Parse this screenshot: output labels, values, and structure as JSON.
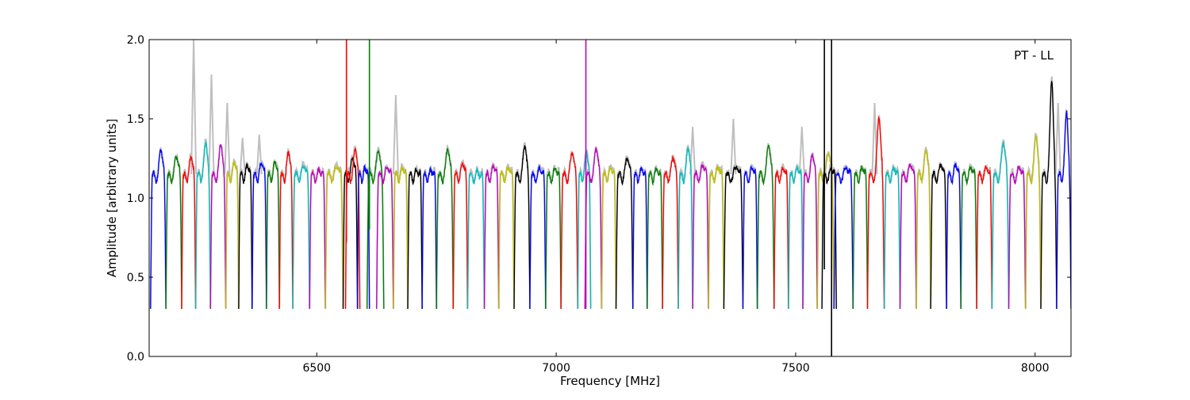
{
  "chart_data": {
    "type": "line",
    "xlabel": "Frequency [MHz]",
    "ylabel": "Amplitude [arbitrary units]",
    "annotation": "PT - LL",
    "xlim": [
      6150,
      8075
    ],
    "ylim": [
      0.0,
      2.0
    ],
    "x_ticks": [
      6500,
      7000,
      7500,
      8000
    ],
    "x_tick_labels": [
      "6500",
      "7000",
      "7500",
      "8000"
    ],
    "y_ticks": [
      0.0,
      0.5,
      1.0,
      1.5,
      2.0
    ],
    "y_tick_labels": [
      "0.0",
      "0.5",
      "1.0",
      "1.5",
      "2.0"
    ],
    "grid": false,
    "color_cycle": [
      "#0000ff",
      "#008000",
      "#ff0000",
      "#00bfbf",
      "#bf00bf",
      "#bfbf00",
      "#000000"
    ],
    "background_trace_color": "#bfbfbf",
    "series": [
      {
        "x_start": 6153,
        "x_end": 6185,
        "peak": 1.32,
        "color": "#0000ff"
      },
      {
        "x_start": 6185,
        "x_end": 6218,
        "peak": 1.28,
        "color": "#008000"
      },
      {
        "x_start": 6218,
        "x_end": 6247,
        "peak": 1.28,
        "color": "#ff0000"
      },
      {
        "x_start": 6247,
        "x_end": 6278,
        "peak": 1.37,
        "color": "#00bfbf"
      },
      {
        "x_start": 6278,
        "x_end": 6310,
        "peak": 1.36,
        "color": "#bf00bf"
      },
      {
        "x_start": 6310,
        "x_end": 6337,
        "peak": 1.24,
        "color": "#bfbf00"
      },
      {
        "x_start": 6337,
        "x_end": 6365,
        "peak": 1.22,
        "color": "#000000"
      },
      {
        "x_start": 6365,
        "x_end": 6395,
        "peak": 1.24,
        "color": "#0000ff"
      },
      {
        "x_start": 6395,
        "x_end": 6422,
        "peak": 1.25,
        "color": "#008000"
      },
      {
        "x_start": 6422,
        "x_end": 6450,
        "peak": 1.31,
        "color": "#ff0000"
      },
      {
        "x_start": 6450,
        "x_end": 6485,
        "peak": 1.22,
        "color": "#00bfbf"
      },
      {
        "x_start": 6485,
        "x_end": 6518,
        "peak": 1.18,
        "color": "#bf00bf"
      },
      {
        "x_start": 6518,
        "x_end": 6555,
        "peak": 1.21,
        "color": "#bfbf00"
      },
      {
        "x_start": 6555,
        "x_end": 6585,
        "peak": 1.27,
        "color": "#000000"
      },
      {
        "x_start": 6560,
        "x_end": 6590,
        "peak": 1.33,
        "color": "#ff0000"
      },
      {
        "x_start": 6585,
        "x_end": 6610,
        "peak": 1.2,
        "color": "#0000ff"
      },
      {
        "x_start": 6605,
        "x_end": 6640,
        "peak": 1.32,
        "color": "#008000"
      },
      {
        "x_start": 6625,
        "x_end": 6660,
        "peak": 1.2,
        "color": "#bf00bf"
      },
      {
        "x_start": 6660,
        "x_end": 6690,
        "peak": 1.2,
        "color": "#bfbf00"
      },
      {
        "x_start": 6690,
        "x_end": 6720,
        "peak": 1.18,
        "color": "#000000"
      },
      {
        "x_start": 6720,
        "x_end": 6750,
        "peak": 1.18,
        "color": "#0000ff"
      },
      {
        "x_start": 6750,
        "x_end": 6785,
        "peak": 1.33,
        "color": "#008000"
      },
      {
        "x_start": 6785,
        "x_end": 6815,
        "peak": 1.24,
        "color": "#ff0000"
      },
      {
        "x_start": 6815,
        "x_end": 6850,
        "peak": 1.16,
        "color": "#00bfbf"
      },
      {
        "x_start": 6850,
        "x_end": 6880,
        "peak": 1.21,
        "color": "#bf00bf"
      },
      {
        "x_start": 6880,
        "x_end": 6912,
        "peak": 1.2,
        "color": "#bfbf00"
      },
      {
        "x_start": 6912,
        "x_end": 6945,
        "peak": 1.35,
        "color": "#000000"
      },
      {
        "x_start": 6945,
        "x_end": 6978,
        "peak": 1.2,
        "color": "#0000ff"
      },
      {
        "x_start": 6978,
        "x_end": 7010,
        "peak": 1.19,
        "color": "#008000"
      },
      {
        "x_start": 7010,
        "x_end": 7045,
        "peak": 1.3,
        "color": "#ff0000"
      },
      {
        "x_start": 7045,
        "x_end": 7072,
        "peak": 1.31,
        "color": "#00bfbf"
      },
      {
        "x_start": 7060,
        "x_end": 7095,
        "peak": 1.33,
        "color": "#bf00bf"
      },
      {
        "x_start": 7095,
        "x_end": 7125,
        "peak": 1.2,
        "color": "#bfbf00"
      },
      {
        "x_start": 7125,
        "x_end": 7160,
        "peak": 1.27,
        "color": "#000000"
      },
      {
        "x_start": 7160,
        "x_end": 7190,
        "peak": 1.19,
        "color": "#0000ff"
      },
      {
        "x_start": 7190,
        "x_end": 7222,
        "peak": 1.18,
        "color": "#008000"
      },
      {
        "x_start": 7222,
        "x_end": 7255,
        "peak": 1.27,
        "color": "#ff0000"
      },
      {
        "x_start": 7255,
        "x_end": 7285,
        "peak": 1.34,
        "color": "#00bfbf"
      },
      {
        "x_start": 7285,
        "x_end": 7318,
        "peak": 1.22,
        "color": "#bf00bf"
      },
      {
        "x_start": 7318,
        "x_end": 7350,
        "peak": 1.2,
        "color": "#bfbf00"
      },
      {
        "x_start": 7350,
        "x_end": 7390,
        "peak": 1.21,
        "color": "#000000"
      },
      {
        "x_start": 7390,
        "x_end": 7420,
        "peak": 1.2,
        "color": "#0000ff"
      },
      {
        "x_start": 7420,
        "x_end": 7455,
        "peak": 1.35,
        "color": "#008000"
      },
      {
        "x_start": 7455,
        "x_end": 7485,
        "peak": 1.2,
        "color": "#ff0000"
      },
      {
        "x_start": 7485,
        "x_end": 7515,
        "peak": 1.2,
        "color": "#00bfbf"
      },
      {
        "x_start": 7515,
        "x_end": 7545,
        "peak": 1.29,
        "color": "#bf00bf"
      },
      {
        "x_start": 7545,
        "x_end": 7580,
        "peak": 1.3,
        "color": "#bfbf00"
      },
      {
        "x_start": 7555,
        "x_end": 7585,
        "peak": 1.2,
        "color": "#000000"
      },
      {
        "x_start": 7580,
        "x_end": 7620,
        "peak": 1.2,
        "color": "#0000ff"
      },
      {
        "x_start": 7620,
        "x_end": 7650,
        "peak": 1.2,
        "color": "#008000"
      },
      {
        "x_start": 7650,
        "x_end": 7685,
        "peak": 1.53,
        "color": "#ff0000"
      },
      {
        "x_start": 7685,
        "x_end": 7718,
        "peak": 1.19,
        "color": "#00bfbf"
      },
      {
        "x_start": 7718,
        "x_end": 7752,
        "peak": 1.22,
        "color": "#bf00bf"
      },
      {
        "x_start": 7752,
        "x_end": 7782,
        "peak": 1.32,
        "color": "#bfbf00"
      },
      {
        "x_start": 7782,
        "x_end": 7815,
        "peak": 1.22,
        "color": "#000000"
      },
      {
        "x_start": 7815,
        "x_end": 7845,
        "peak": 1.22,
        "color": "#0000ff"
      },
      {
        "x_start": 7845,
        "x_end": 7878,
        "peak": 1.2,
        "color": "#008000"
      },
      {
        "x_start": 7878,
        "x_end": 7910,
        "peak": 1.2,
        "color": "#ff0000"
      },
      {
        "x_start": 7910,
        "x_end": 7945,
        "peak": 1.37,
        "color": "#00bfbf"
      },
      {
        "x_start": 7945,
        "x_end": 7980,
        "peak": 1.2,
        "color": "#bf00bf"
      },
      {
        "x_start": 7980,
        "x_end": 8012,
        "peak": 1.42,
        "color": "#bfbf00"
      },
      {
        "x_start": 8012,
        "x_end": 8045,
        "peak": 1.77,
        "color": "#000000"
      },
      {
        "x_start": 8045,
        "x_end": 8075,
        "peak": 1.57,
        "color": "#0000ff"
      }
    ],
    "spikes": [
      {
        "x": 6562,
        "y_low": 0.72,
        "y_high": 2.0,
        "color": "#ff0000"
      },
      {
        "x": 6610,
        "y_low": 0.8,
        "y_high": 2.0,
        "color": "#008000"
      },
      {
        "x": 7062,
        "y_low": 0.3,
        "y_high": 2.0,
        "color": "#bf00bf"
      },
      {
        "x": 7560,
        "y_low": 0.55,
        "y_high": 2.0,
        "color": "#000000"
      },
      {
        "x": 7575,
        "y_low": 0.0,
        "y_high": 2.0,
        "color": "#000000"
      }
    ],
    "background_peaks": [
      {
        "x": 6243,
        "y": 2.0
      },
      {
        "x": 6280,
        "y": 1.78
      },
      {
        "x": 6313,
        "y": 1.6
      },
      {
        "x": 6345,
        "y": 1.38
      },
      {
        "x": 6380,
        "y": 1.4
      },
      {
        "x": 6665,
        "y": 1.65
      },
      {
        "x": 7285,
        "y": 1.45
      },
      {
        "x": 7370,
        "y": 1.5
      },
      {
        "x": 7513,
        "y": 1.45
      },
      {
        "x": 7665,
        "y": 1.6
      },
      {
        "x": 8048,
        "y": 1.6
      }
    ]
  }
}
